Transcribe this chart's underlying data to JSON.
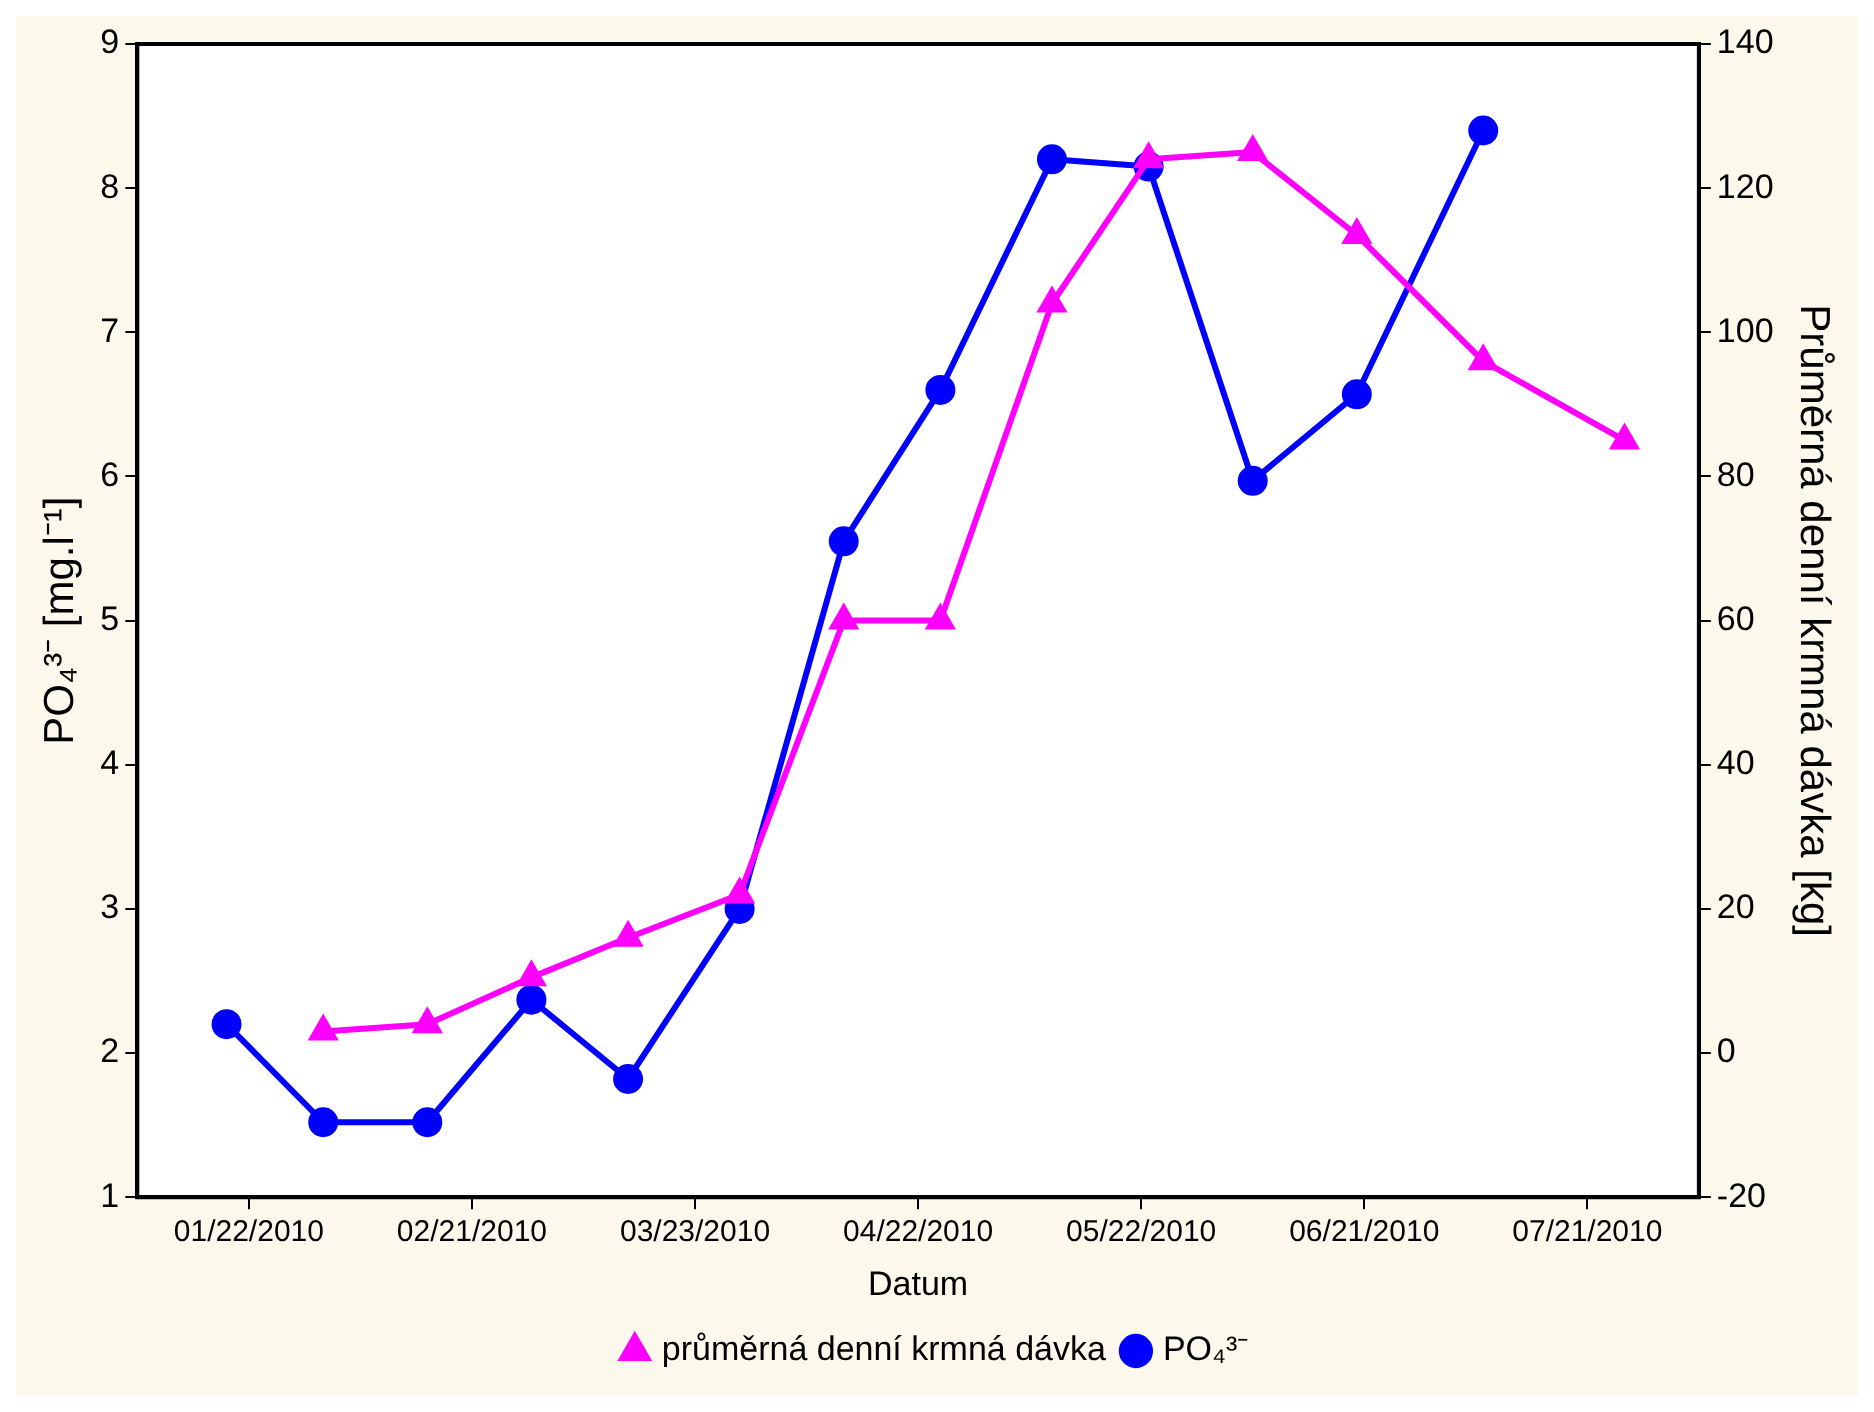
{
  "chart_data": {
    "type": "line",
    "xlabel": "Datum",
    "ylabel": "PO₄³⁻ [mg.l⁻¹]",
    "y2label": "Průměrná denní krmná dávka [kg]",
    "xlim": [
      "2010-01-07",
      "2010-08-05"
    ],
    "xticks": [
      {
        "value": "2010-01-22",
        "label": "01/22/2010"
      },
      {
        "value": "2010-02-21",
        "label": "02/21/2010"
      },
      {
        "value": "2010-03-23",
        "label": "03/23/2010"
      },
      {
        "value": "2010-04-22",
        "label": "04/22/2010"
      },
      {
        "value": "2010-05-22",
        "label": "05/22/2010"
      },
      {
        "value": "2010-06-21",
        "label": "06/21/2010"
      },
      {
        "value": "2010-07-21",
        "label": "07/21/2010"
      }
    ],
    "ylim": [
      1,
      9
    ],
    "yticks": [
      1,
      2,
      3,
      4,
      5,
      6,
      7,
      8,
      9
    ],
    "y2lim": [
      -20,
      140
    ],
    "y2ticks": [
      -20,
      0,
      20,
      40,
      60,
      80,
      100,
      120,
      140
    ],
    "grid": false,
    "legend": "bottom",
    "line_style": "solid",
    "series": [
      {
        "name": "PO₄³⁻",
        "color": "#0000ff",
        "marker": "circle",
        "x": [
          "2010-01-19",
          "2010-02-01",
          "2010-02-15",
          "2010-03-01",
          "2010-03-14",
          "2010-03-29",
          "2010-04-12",
          "2010-04-25",
          "2010-05-10",
          "2010-05-23",
          "2010-06-06",
          "2010-06-20",
          "2010-07-07"
        ],
        "values": [
          2.2,
          1.52,
          1.52,
          2.37,
          1.82,
          3.0,
          5.55,
          6.6,
          8.2,
          8.15,
          5.97,
          6.57,
          8.4
        ]
      },
      {
        "name": "průměrná denní krmná dávka",
        "color": "#ff00ff",
        "marker": "triangle",
        "axis": "y2",
        "x": [
          "2010-02-01",
          "2010-02-15",
          "2010-03-01",
          "2010-03-14",
          "2010-03-29",
          "2010-04-12",
          "2010-04-25",
          "2010-05-10",
          "2010-05-23",
          "2010-06-06",
          "2010-06-20",
          "2010-07-07",
          "2010-07-26"
        ],
        "values": [
          3,
          4,
          10.5,
          16,
          22,
          60,
          60,
          104,
          124,
          125,
          113.5,
          96,
          85
        ]
      }
    ]
  }
}
